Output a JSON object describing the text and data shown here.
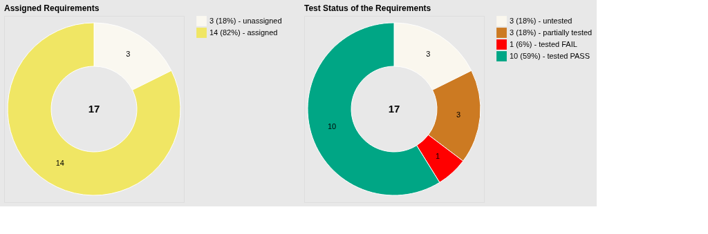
{
  "chart_data": [
    {
      "type": "donut",
      "title": "Assigned Requirements",
      "categories": [
        "3 (18%) - unassigned",
        "14 (82%) - assigned"
      ],
      "values": [
        3,
        14
      ],
      "colors": [
        "#faf8f0",
        "#f0e664"
      ],
      "data_labels": true,
      "annotations": [
        "17"
      ],
      "legend": "right"
    },
    {
      "type": "donut",
      "title": "Test Status of the Requirements",
      "categories": [
        "3 (18%) - untested",
        "3 (18%) - partially tested",
        "1 (6%) - tested FAIL",
        "10 (59%) - tested PASS"
      ],
      "values": [
        3,
        3,
        1,
        10
      ],
      "colors": [
        "#faf7ee",
        "#cc7a22",
        "#ff0000",
        "#00a685"
      ],
      "data_labels": true,
      "annotations": [
        "17"
      ],
      "legend": "right"
    }
  ]
}
